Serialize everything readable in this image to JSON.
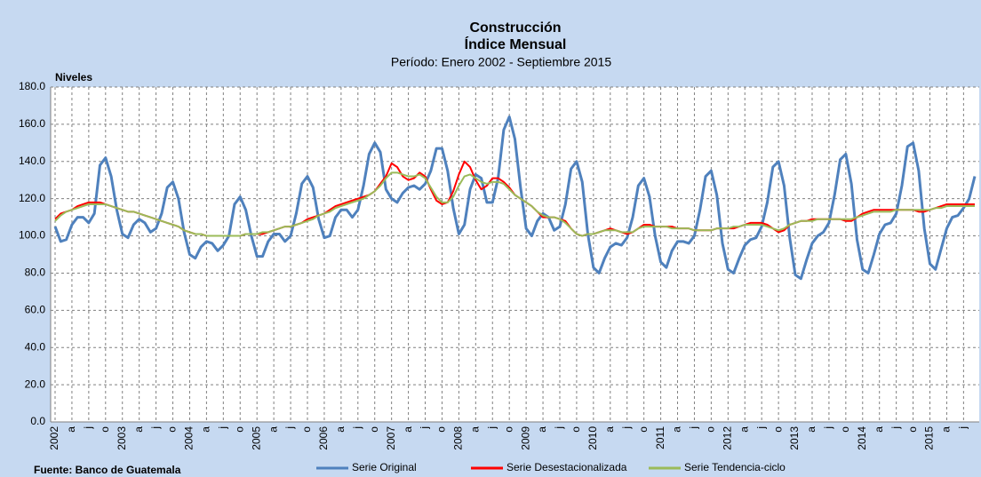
{
  "chart_data": {
    "type": "line",
    "title": "Construcción",
    "subtitle": "Índice Mensual",
    "period": "Período: Enero 2002 - Septiembre 2015",
    "y_label": "Niveles",
    "source": "Fuente: Banco de Guatemala",
    "categories": [
      "2002",
      null,
      null,
      "a",
      null,
      null,
      "j",
      null,
      null,
      "o",
      null,
      null,
      "2003",
      null,
      null,
      "a",
      null,
      null,
      "j",
      null,
      null,
      "o",
      null,
      null,
      "2004",
      null,
      null,
      "a",
      null,
      null,
      "j",
      null,
      null,
      "o",
      null,
      null,
      "2005",
      null,
      null,
      "a",
      null,
      null,
      "j",
      null,
      null,
      "o",
      null,
      null,
      "2006",
      null,
      null,
      "a",
      null,
      null,
      "j",
      null,
      null,
      "o",
      null,
      null,
      "2007",
      null,
      null,
      "a",
      null,
      null,
      "j",
      null,
      null,
      "o",
      null,
      null,
      "2008",
      null,
      null,
      "a",
      null,
      null,
      "j",
      null,
      null,
      "o",
      null,
      null,
      "2009",
      null,
      null,
      "a",
      null,
      null,
      "j",
      null,
      null,
      "o",
      null,
      null,
      "2010",
      null,
      null,
      "a",
      null,
      null,
      "j",
      null,
      null,
      "o",
      null,
      null,
      "2011",
      null,
      null,
      "a",
      null,
      null,
      "j",
      null,
      null,
      "o",
      null,
      null,
      "2012",
      null,
      null,
      "a",
      null,
      null,
      "j",
      null,
      null,
      "o",
      null,
      null,
      "2013",
      null,
      null,
      "a",
      null,
      null,
      "j",
      null,
      null,
      "o",
      null,
      null,
      "2014",
      null,
      null,
      "a",
      null,
      null,
      "j",
      null,
      null,
      "o",
      null,
      null,
      "2015",
      null,
      null,
      "a",
      null,
      null,
      "j",
      null,
      null
    ],
    "series": [
      {
        "name": "Serie Original",
        "color": "#4f81bd",
        "width": 3,
        "values": [
          105,
          97,
          98,
          106,
          110,
          110,
          107,
          112,
          138,
          142,
          132,
          114,
          101,
          99,
          106,
          109,
          107,
          102,
          104,
          112,
          126,
          129,
          120,
          102,
          90,
          88,
          94,
          97,
          96,
          92,
          95,
          100,
          117,
          121,
          114,
          100,
          89,
          89,
          97,
          101,
          101,
          97,
          100,
          112,
          128,
          132,
          126,
          109,
          99,
          100,
          110,
          114,
          114,
          110,
          114,
          127,
          144,
          150,
          145,
          125,
          120,
          118,
          123,
          126,
          127,
          125,
          128,
          135,
          147,
          147,
          135,
          115,
          101,
          106,
          125,
          133,
          131,
          118,
          118,
          131,
          157,
          164,
          152,
          126,
          104,
          100,
          108,
          112,
          110,
          103,
          105,
          117,
          136,
          140,
          129,
          101,
          83,
          80,
          88,
          94,
          96,
          95,
          99,
          110,
          127,
          131,
          121,
          100,
          86,
          83,
          92,
          97,
          97,
          96,
          100,
          114,
          132,
          135,
          122,
          96,
          82,
          80,
          88,
          95,
          98,
          99,
          105,
          118,
          137,
          140,
          127,
          99,
          79,
          77,
          87,
          96,
          100,
          102,
          107,
          122,
          141,
          144,
          128,
          98,
          82,
          80,
          90,
          101,
          106,
          107,
          112,
          127,
          148,
          150,
          135,
          104,
          85,
          82,
          93,
          104,
          110,
          111,
          115,
          120,
          132
        ]
      },
      {
        "name": "Serie Desestacionalizada",
        "color": "#ff0000",
        "width": 2,
        "values": [
          109,
          112,
          113,
          114,
          116,
          117,
          118,
          118,
          118,
          117,
          116,
          115,
          114,
          113,
          113,
          112,
          111,
          110,
          109,
          108,
          107,
          106,
          105,
          103,
          102,
          101,
          101,
          100,
          100,
          100,
          100,
          100,
          100,
          100,
          101,
          101,
          101,
          101,
          102,
          103,
          104,
          105,
          105,
          106,
          107,
          109,
          110,
          111,
          112,
          114,
          116,
          117,
          118,
          119,
          120,
          121,
          122,
          124,
          128,
          132,
          139,
          137,
          132,
          130,
          131,
          134,
          132,
          125,
          119,
          117,
          118,
          124,
          133,
          140,
          137,
          130,
          125,
          127,
          131,
          131,
          129,
          126,
          122,
          120,
          118,
          116,
          113,
          110,
          110,
          110,
          109,
          108,
          104,
          101,
          100,
          101,
          101,
          102,
          103,
          104,
          103,
          102,
          101,
          102,
          104,
          106,
          106,
          105,
          105,
          105,
          105,
          104,
          104,
          104,
          103,
          103,
          103,
          103,
          104,
          104,
          104,
          104,
          105,
          106,
          107,
          107,
          107,
          106,
          104,
          102,
          103,
          106,
          107,
          108,
          108,
          109,
          109,
          109,
          109,
          109,
          109,
          108,
          108,
          110,
          112,
          113,
          114,
          114,
          114,
          114,
          114,
          114,
          114,
          114,
          113,
          113,
          114,
          115,
          116,
          117,
          117,
          117,
          117,
          117,
          117
        ]
      },
      {
        "name": "Serie Tendencia-ciclo",
        "color": "#9bbb59",
        "width": 2,
        "values": [
          108,
          111,
          113,
          114,
          115,
          116,
          117,
          117,
          117,
          117,
          116,
          115,
          114,
          113,
          113,
          112,
          111,
          110,
          109,
          108,
          107,
          106,
          105,
          103,
          102,
          101,
          101,
          100,
          100,
          100,
          100,
          100,
          100,
          100,
          101,
          101,
          101,
          102,
          102,
          103,
          104,
          105,
          105,
          106,
          107,
          108,
          109,
          111,
          112,
          113,
          115,
          116,
          117,
          118,
          119,
          120,
          122,
          124,
          127,
          131,
          134,
          134,
          133,
          132,
          132,
          133,
          131,
          126,
          121,
          118,
          118,
          121,
          127,
          132,
          133,
          131,
          129,
          128,
          129,
          129,
          128,
          125,
          122,
          120,
          118,
          116,
          113,
          111,
          110,
          110,
          109,
          107,
          104,
          101,
          100,
          101,
          101,
          102,
          103,
          103,
          103,
          102,
          102,
          102,
          104,
          105,
          105,
          105,
          105,
          105,
          104,
          104,
          104,
          104,
          103,
          103,
          103,
          103,
          104,
          104,
          104,
          105,
          105,
          106,
          106,
          106,
          106,
          105,
          104,
          103,
          104,
          106,
          107,
          108,
          108,
          108,
          109,
          109,
          109,
          109,
          109,
          109,
          109,
          110,
          111,
          112,
          113,
          113,
          113,
          113,
          114,
          114,
          114,
          114,
          114,
          114,
          114,
          115,
          115,
          116,
          116,
          116,
          116,
          116,
          116
        ]
      }
    ],
    "ylim": [
      0,
      180
    ],
    "yticks": [
      {
        "value": 0,
        "label": "0.0"
      },
      {
        "value": 20,
        "label": "20.0"
      },
      {
        "value": 40,
        "label": "40.0"
      },
      {
        "value": 60,
        "label": "60.0"
      },
      {
        "value": 80,
        "label": "80.0"
      },
      {
        "value": 100,
        "label": "100.0"
      },
      {
        "value": 120,
        "label": "120.0"
      },
      {
        "value": 140,
        "label": "140.0"
      },
      {
        "value": 160,
        "label": "160.0"
      },
      {
        "value": 180,
        "label": "180.0"
      }
    ],
    "grid": true
  }
}
